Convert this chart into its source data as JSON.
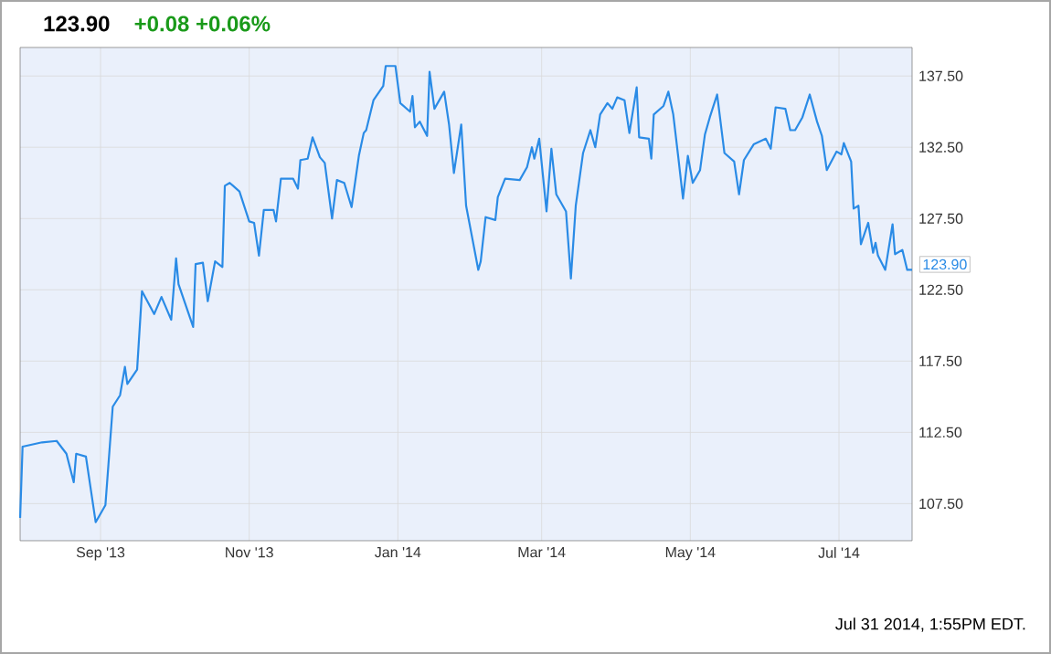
{
  "chart_data": {
    "type": "line",
    "title": "123.90",
    "subtitle": "+0.08  +0.06%",
    "annotations": [
      {
        "text": "123.90",
        "x": "2014-07-31",
        "y": 123.9
      },
      "Jul 31 2014, 1:55PM EDT."
    ],
    "x": [
      "2013-07-30",
      "2013-07-31",
      "2013-08-08",
      "2013-08-14",
      "2013-08-18",
      "2013-08-21",
      "2013-08-22",
      "2013-08-26",
      "2013-08-28",
      "2013-08-30",
      "2013-09-03",
      "2013-09-06",
      "2013-09-09",
      "2013-09-11",
      "2013-09-12",
      "2013-09-16",
      "2013-09-18",
      "2013-09-23",
      "2013-09-26",
      "2013-09-30",
      "2013-10-02",
      "2013-10-03",
      "2013-10-09",
      "2013-10-10",
      "2013-10-13",
      "2013-10-15",
      "2013-10-18",
      "2013-10-21",
      "2013-10-22",
      "2013-10-24",
      "2013-10-28",
      "2013-11-01",
      "2013-11-03",
      "2013-11-05",
      "2013-11-07",
      "2013-11-11",
      "2013-11-12",
      "2013-11-14",
      "2013-11-19",
      "2013-11-21",
      "2013-11-22",
      "2013-11-25",
      "2013-11-27",
      "2013-11-30",
      "2013-12-02",
      "2013-12-05",
      "2013-12-07",
      "2013-12-10",
      "2013-12-13",
      "2013-12-16",
      "2013-12-18",
      "2013-12-19",
      "2013-12-22",
      "2013-12-26",
      "2013-12-27",
      "2013-12-31",
      "2014-01-02",
      "2014-01-06",
      "2014-01-07",
      "2014-01-08",
      "2014-01-10",
      "2014-01-13",
      "2014-01-14",
      "2014-01-16",
      "2014-01-20",
      "2014-01-22",
      "2014-01-24",
      "2014-01-27",
      "2014-01-29",
      "2014-02-03",
      "2014-02-04",
      "2014-02-06",
      "2014-02-10",
      "2014-02-11",
      "2014-02-14",
      "2014-02-20",
      "2014-02-23",
      "2014-02-25",
      "2014-02-26",
      "2014-02-28",
      "2014-03-03",
      "2014-03-05",
      "2014-03-07",
      "2014-03-11",
      "2014-03-13",
      "2014-03-15",
      "2014-03-18",
      "2014-03-21",
      "2014-03-23",
      "2014-03-25",
      "2014-03-28",
      "2014-03-30",
      "2014-04-01",
      "2014-04-04",
      "2014-04-06",
      "2014-04-09",
      "2014-04-10",
      "2014-04-14",
      "2014-04-15",
      "2014-04-16",
      "2014-04-20",
      "2014-04-22",
      "2014-04-24",
      "2014-04-26",
      "2014-04-28",
      "2014-04-30",
      "2014-05-02",
      "2014-05-05",
      "2014-05-07",
      "2014-05-09",
      "2014-05-12",
      "2014-05-15",
      "2014-05-19",
      "2014-05-21",
      "2014-05-23",
      "2014-05-27",
      "2014-06-01",
      "2014-06-03",
      "2014-06-05",
      "2014-06-09",
      "2014-06-11",
      "2014-06-13",
      "2014-06-16",
      "2014-06-19",
      "2014-06-22",
      "2014-06-24",
      "2014-06-26",
      "2014-06-30",
      "2014-07-02",
      "2014-07-03",
      "2014-07-06",
      "2014-07-07",
      "2014-07-09",
      "2014-07-10",
      "2014-07-13",
      "2014-07-15",
      "2014-07-16",
      "2014-07-17",
      "2014-07-20",
      "2014-07-23",
      "2014-07-24",
      "2014-07-27",
      "2014-07-29",
      "2014-07-31"
    ],
    "series": [
      {
        "color": "#2a8be6",
        "values": [
          106.5,
          111.5,
          111.8,
          111.9,
          111.0,
          109.0,
          111.0,
          110.8,
          108.5,
          106.2,
          107.4,
          114.3,
          115.1,
          117.1,
          115.9,
          116.9,
          122.4,
          120.8,
          122.0,
          120.4,
          124.7,
          122.9,
          119.9,
          124.3,
          124.4,
          121.7,
          124.5,
          124.1,
          129.8,
          130.0,
          129.4,
          127.3,
          127.2,
          124.9,
          128.1,
          128.1,
          127.3,
          130.3,
          130.3,
          129.6,
          131.6,
          131.7,
          133.2,
          131.8,
          131.4,
          127.5,
          130.2,
          130.0,
          128.3,
          131.9,
          133.5,
          133.7,
          135.8,
          136.8,
          138.2,
          138.2,
          135.6,
          135.0,
          136.1,
          133.9,
          134.3,
          133.3,
          137.8,
          135.2,
          136.4,
          134.1,
          130.7,
          134.1,
          128.4,
          123.9,
          124.5,
          127.6,
          127.4,
          129.0,
          130.3,
          130.2,
          131.1,
          132.5,
          131.7,
          133.1,
          128.0,
          132.4,
          129.2,
          128.0,
          123.3,
          128.4,
          132.1,
          133.7,
          132.5,
          134.8,
          135.6,
          135.2,
          136.0,
          135.8,
          133.5,
          136.7,
          133.2,
          133.1,
          131.7,
          134.8,
          135.4,
          136.4,
          134.8,
          131.9,
          128.9,
          131.9,
          130.0,
          130.9,
          133.4,
          134.6,
          136.2,
          132.1,
          131.5,
          129.2,
          131.6,
          132.7,
          133.1,
          132.4,
          135.3,
          135.2,
          133.7,
          133.7,
          134.6,
          136.2,
          134.3,
          133.3,
          130.9,
          132.2,
          132.0,
          132.8,
          131.5,
          128.2,
          128.4,
          125.7,
          127.2,
          125.1,
          125.8,
          124.9,
          123.9,
          127.1,
          125.0,
          125.3,
          123.9,
          123.9
        ]
      }
    ],
    "xlim": [
      "2013-07-30",
      "2014-07-31"
    ],
    "xticks": [
      {
        "value": "2013-09-01",
        "label": "Sep '13"
      },
      {
        "value": "2013-11-01",
        "label": "Nov '13"
      },
      {
        "value": "2014-01-01",
        "label": "Jan '14"
      },
      {
        "value": "2014-03-01",
        "label": "Mar '14"
      },
      {
        "value": "2014-05-01",
        "label": "May '14"
      },
      {
        "value": "2014-07-01",
        "label": "Jul '14"
      }
    ],
    "ylim": [
      104.9,
      139.5
    ],
    "yticks": [
      {
        "value": 107.5,
        "label": "107.50"
      },
      {
        "value": 112.5,
        "label": "112.50"
      },
      {
        "value": 117.5,
        "label": "117.50"
      },
      {
        "value": 122.5,
        "label": "122.50"
      },
      {
        "value": 127.5,
        "label": "127.50"
      },
      {
        "value": 132.5,
        "label": "132.50"
      },
      {
        "value": 137.5,
        "label": "137.50"
      }
    ],
    "grid": true,
    "line_style": "solid",
    "marker": "none"
  }
}
